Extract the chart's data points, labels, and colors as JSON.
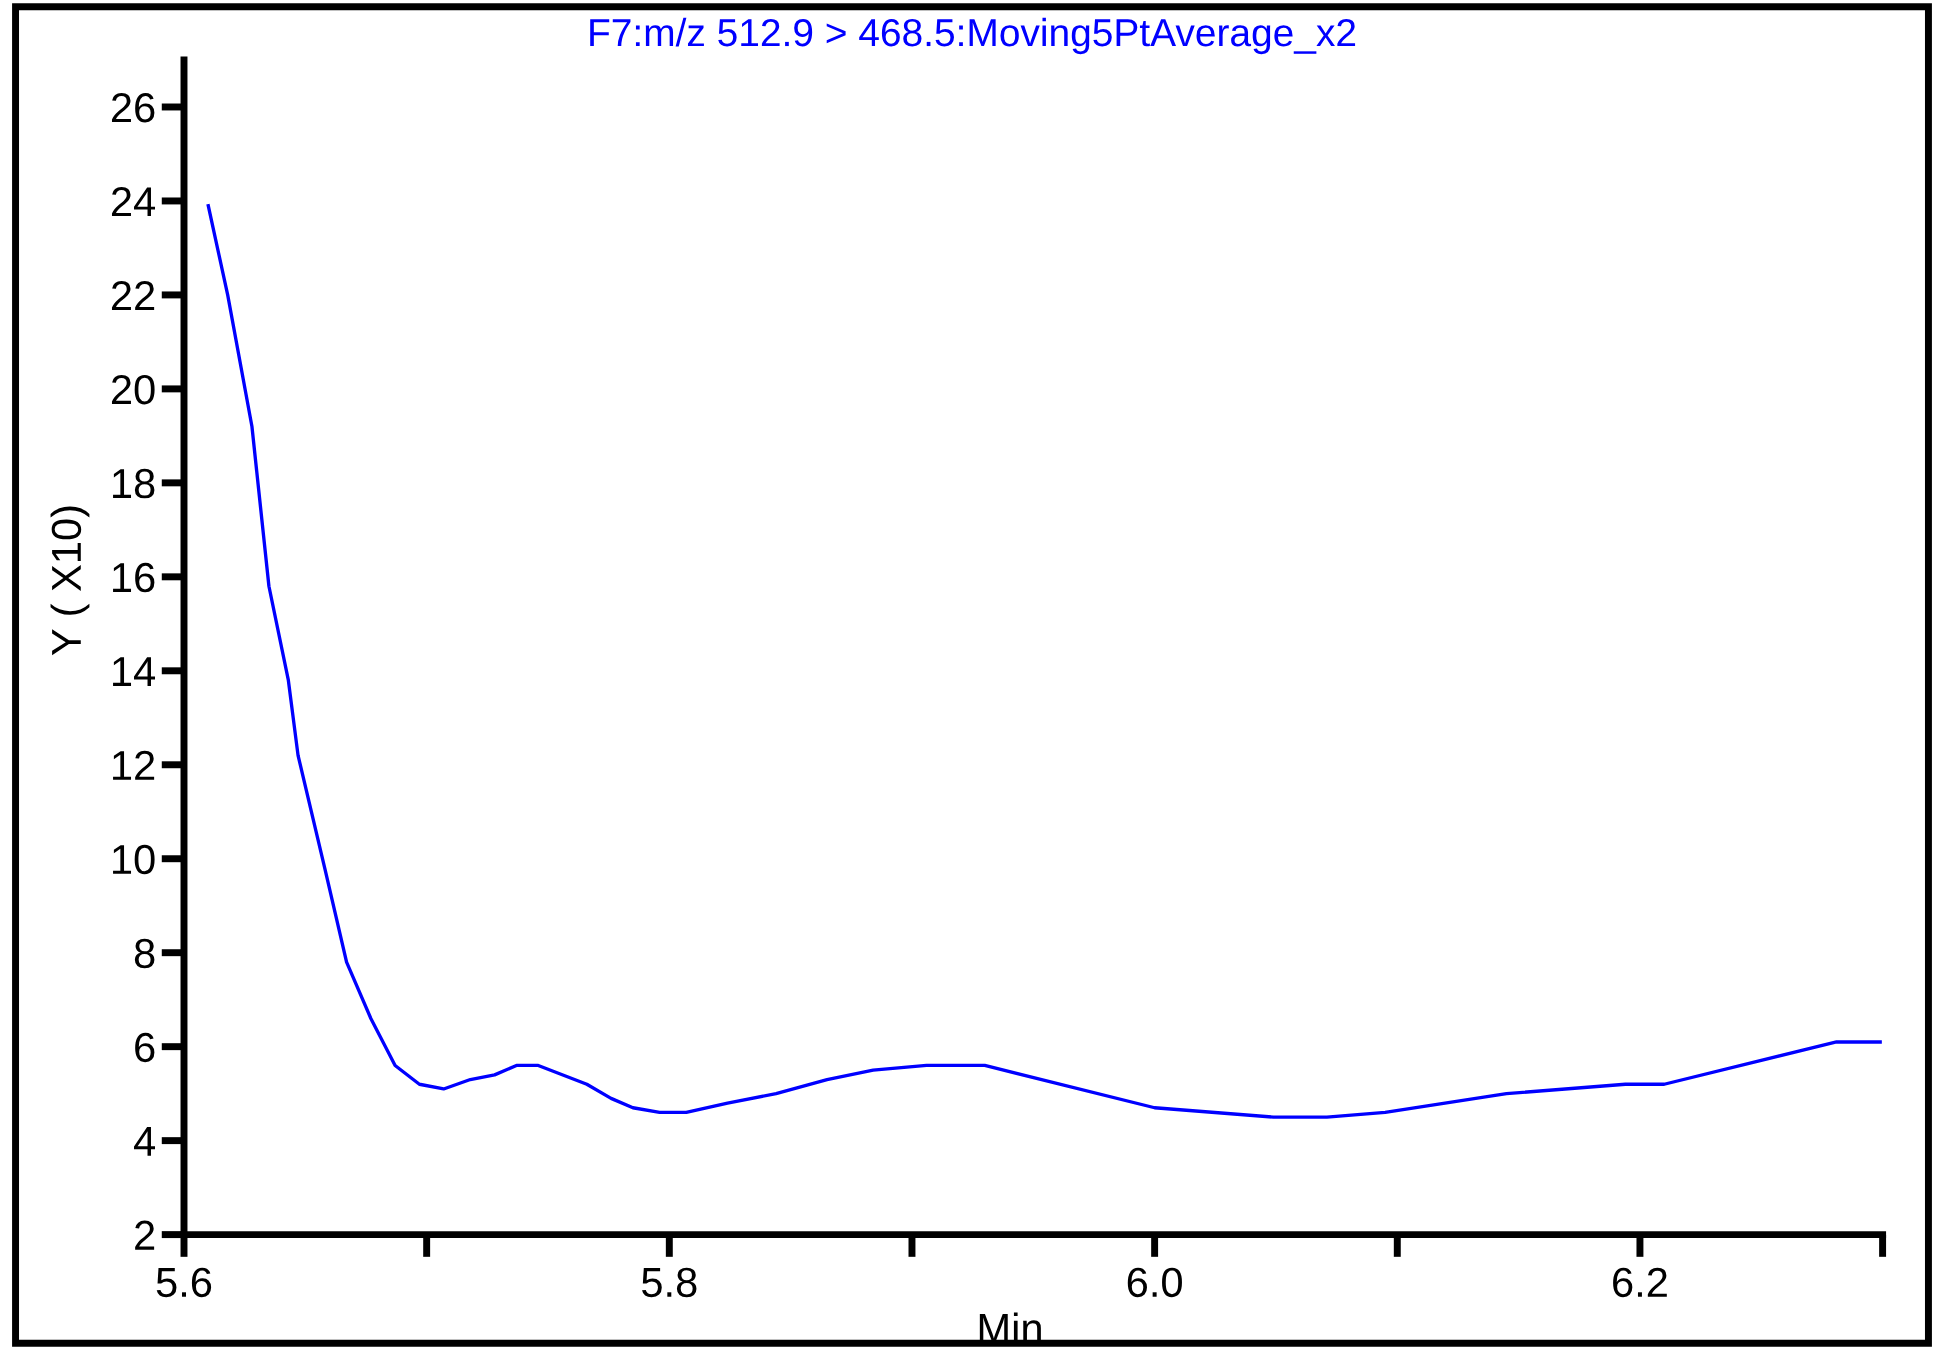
{
  "chart_data": {
    "type": "line",
    "title": "F7:m/z 512.9 > 468.5:Moving5PtAverage_x2",
    "xlabel": "Min",
    "ylabel": "Y ( X10)",
    "x": [
      5.61,
      5.618,
      5.628,
      5.635,
      5.643,
      5.647,
      5.658,
      5.667,
      5.677,
      5.687,
      5.697,
      5.707,
      5.718,
      5.728,
      5.737,
      5.746,
      5.766,
      5.776,
      5.785,
      5.796,
      5.807,
      5.824,
      5.844,
      5.865,
      5.884,
      5.906,
      5.93,
      6.0,
      6.049,
      6.071,
      6.095,
      6.145,
      6.194,
      6.21,
      6.281,
      6.299
    ],
    "series": [
      {
        "color": "#0000ff",
        "values": [
          23.9,
          22.0,
          19.2,
          15.8,
          13.8,
          12.2,
          9.8,
          7.8,
          6.6,
          5.6,
          5.2,
          5.1,
          5.3,
          5.4,
          5.6,
          5.6,
          5.2,
          4.9,
          4.7,
          4.6,
          4.6,
          4.8,
          5.0,
          5.3,
          5.5,
          5.6,
          5.6,
          4.7,
          4.5,
          4.5,
          4.6,
          5.0,
          5.2,
          5.2,
          6.1,
          6.1
        ]
      }
    ],
    "xlim": [
      5.6,
      6.3
    ],
    "ylim": [
      2,
      27
    ],
    "xticks": [
      5.6,
      {
        "value": 5.7,
        "label": null
      },
      5.8,
      {
        "value": 5.9,
        "label": null
      },
      {
        "value": 6.0,
        "label": "6.0"
      },
      {
        "value": 6.1,
        "label": null
      },
      6.2,
      {
        "value": 6.3,
        "label": null
      }
    ],
    "yticks": [
      2,
      4,
      6,
      8,
      10,
      12,
      14,
      16,
      18,
      20,
      22,
      24,
      26
    ],
    "grid": false,
    "legend": false,
    "marker": "none",
    "line_style": "solid"
  }
}
